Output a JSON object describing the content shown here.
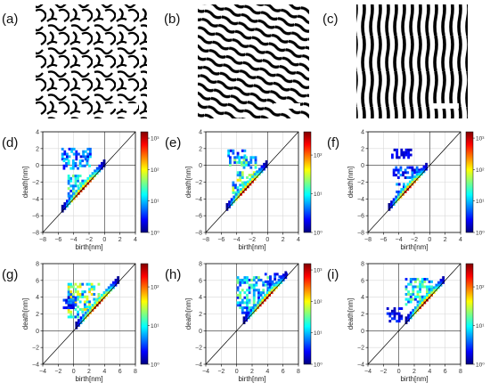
{
  "figure": {
    "image_panels": [
      {
        "label": "(a)",
        "pattern": "labyrinth",
        "stripe_color": "#000000",
        "background": "#ffffff"
      },
      {
        "label": "(b)",
        "pattern": "oblique-stripes",
        "stripe_color": "#000000",
        "background": "#ffffff"
      },
      {
        "label": "(c)",
        "pattern": "vertical-stripes",
        "stripe_color": "#000000",
        "background": "#ffffff"
      }
    ],
    "colormap": [
      "#00007f",
      "#0000ff",
      "#0080ff",
      "#00ffff",
      "#80ff80",
      "#ffff00",
      "#ff8000",
      "#ff0000",
      "#7f0000"
    ]
  },
  "chart_data": [
    {
      "label": "(d)",
      "type": "heatmap",
      "xlabel": "birth[nm]",
      "ylabel": "death[nm]",
      "xlim": [
        -8,
        4
      ],
      "ylim": [
        -8,
        4
      ],
      "xticks": [
        -8,
        -6,
        -4,
        -2,
        0,
        2,
        4
      ],
      "yticks": [
        -8,
        -6,
        -4,
        -2,
        0,
        2,
        4
      ],
      "grid": true,
      "diagonal": true,
      "colorbar": {
        "scale": "log",
        "ticks": [
          "10⁰",
          "10¹",
          "10²",
          "10³"
        ],
        "max_exp": 3.2
      },
      "clusters": [
        {
          "x": [
            -5.6,
            -1.9
          ],
          "y": [
            0.6,
            1.9
          ],
          "exp": 0.9
        },
        {
          "x": [
            -5.4,
            -2.0
          ],
          "y": [
            -0.5,
            0.4
          ],
          "exp": 1.1
        },
        {
          "x": [
            -4.8,
            -1.0
          ],
          "y": [
            -3.8,
            -1.2
          ],
          "exp": 1.4
        }
      ],
      "diag_band": {
        "x": [
          -5.6,
          -0.2
        ],
        "max_exp": 3.0
      }
    },
    {
      "label": "(e)",
      "type": "heatmap",
      "xlabel": "birth[nm]",
      "ylabel": "death[nm]",
      "xlim": [
        -8,
        4
      ],
      "ylim": [
        -8,
        4
      ],
      "xticks": [
        -8,
        -6,
        -4,
        -2,
        0,
        2,
        4
      ],
      "yticks": [
        -8,
        -6,
        -4,
        -2,
        0,
        2,
        4
      ],
      "grid": true,
      "diagonal": true,
      "colorbar": {
        "scale": "log",
        "ticks": [
          "10⁰",
          "10¹",
          "10²"
        ],
        "max_exp": 2.6
      },
      "clusters": [
        {
          "x": [
            -5.2,
            -2.8
          ],
          "y": [
            1.0,
            1.8
          ],
          "exp": 0.8
        },
        {
          "x": [
            -5.0,
            -1.6
          ],
          "y": [
            -0.4,
            0.9
          ],
          "exp": 1.2
        },
        {
          "x": [
            -4.6,
            -1.0
          ],
          "y": [
            -4.0,
            -1.0
          ],
          "exp": 1.5
        }
      ],
      "diag_band": {
        "x": [
          -5.4,
          -0.3
        ],
        "max_exp": 2.5
      }
    },
    {
      "label": "(f)",
      "type": "heatmap",
      "xlabel": "birth[nm]",
      "ylabel": "death[nm]",
      "xlim": [
        -8,
        4
      ],
      "ylim": [
        -8,
        4
      ],
      "xticks": [
        -8,
        -6,
        -4,
        -2,
        0,
        2,
        4
      ],
      "yticks": [
        -8,
        -6,
        -4,
        -2,
        0,
        2,
        4
      ],
      "grid": true,
      "diagonal": true,
      "colorbar": {
        "scale": "log",
        "ticks": [
          "10⁰",
          "10¹",
          "10²",
          "10³"
        ],
        "max_exp": 3.2
      },
      "clusters": [
        {
          "x": [
            -5.0,
            -2.4
          ],
          "y": [
            0.8,
            2.0
          ],
          "exp": 0.4
        },
        {
          "x": [
            -4.8,
            -1.2
          ],
          "y": [
            -1.6,
            -0.3
          ],
          "exp": 0.8
        },
        {
          "x": [
            -4.4,
            -1.4
          ],
          "y": [
            -4.2,
            -2.2
          ],
          "exp": 0.9
        }
      ],
      "diag_band": {
        "x": [
          -5.4,
          -0.4
        ],
        "max_exp": 3.0
      }
    },
    {
      "label": "(g)",
      "type": "heatmap",
      "xlabel": "birth[nm]",
      "ylabel": "death[nm]",
      "xlim": [
        -4,
        8
      ],
      "ylim": [
        -4,
        8
      ],
      "xticks": [
        -4,
        -2,
        0,
        2,
        4,
        6,
        8
      ],
      "yticks": [
        -4,
        -2,
        0,
        2,
        4,
        6,
        8
      ],
      "grid": true,
      "diagonal": true,
      "colorbar": {
        "scale": "log",
        "ticks": [
          "10⁰",
          "10¹",
          "10²"
        ],
        "max_exp": 2.6
      },
      "clusters": [
        {
          "x": [
            -0.8,
            3.2
          ],
          "y": [
            1.5,
            5.6
          ],
          "exp": 1.5
        },
        {
          "x": [
            -1.4,
            0.4
          ],
          "y": [
            2.6,
            4.0
          ],
          "exp": 0.6
        }
      ],
      "diag_band": {
        "x": [
          0.2,
          5.6
        ],
        "max_exp": 2.5
      }
    },
    {
      "label": "(h)",
      "type": "heatmap",
      "xlabel": "birth[nm]",
      "ylabel": "death[nm]",
      "xlim": [
        -4,
        8
      ],
      "ylim": [
        -4,
        8
      ],
      "xticks": [
        -4,
        -2,
        0,
        2,
        4,
        6,
        8
      ],
      "yticks": [
        -4,
        -2,
        0,
        2,
        4,
        6,
        8
      ],
      "grid": true,
      "diagonal": true,
      "colorbar": {
        "scale": "log",
        "ticks": [
          "10⁰",
          "10¹",
          "10²",
          "10³"
        ],
        "max_exp": 3.2
      },
      "clusters": [
        {
          "x": [
            0.0,
            4.4
          ],
          "y": [
            2.0,
            6.4
          ],
          "exp": 1.4
        },
        {
          "x": [
            3.6,
            6.6
          ],
          "y": [
            4.2,
            6.6
          ],
          "exp": 0.6
        }
      ],
      "diag_band": {
        "x": [
          0.8,
          6.4
        ],
        "max_exp": 3.0
      }
    },
    {
      "label": "(i)",
      "type": "heatmap",
      "xlabel": "birth[nm]",
      "ylabel": "death[nm]",
      "xlim": [
        -4,
        8
      ],
      "ylim": [
        -4,
        8
      ],
      "xticks": [
        -4,
        -2,
        0,
        2,
        4,
        6,
        8
      ],
      "yticks": [
        -4,
        -2,
        0,
        2,
        4,
        6,
        8
      ],
      "grid": true,
      "diagonal": true,
      "colorbar": {
        "scale": "log",
        "ticks": [
          "10⁰",
          "10¹",
          "10²"
        ],
        "max_exp": 2.6
      },
      "clusters": [
        {
          "x": [
            0.8,
            4.2
          ],
          "y": [
            3.0,
            6.2
          ],
          "exp": 1.2
        },
        {
          "x": [
            -1.6,
            0.4
          ],
          "y": [
            1.0,
            2.6
          ],
          "exp": 0.4
        }
      ],
      "diag_band": {
        "x": [
          0.8,
          5.8
        ],
        "max_exp": 2.5
      }
    }
  ]
}
